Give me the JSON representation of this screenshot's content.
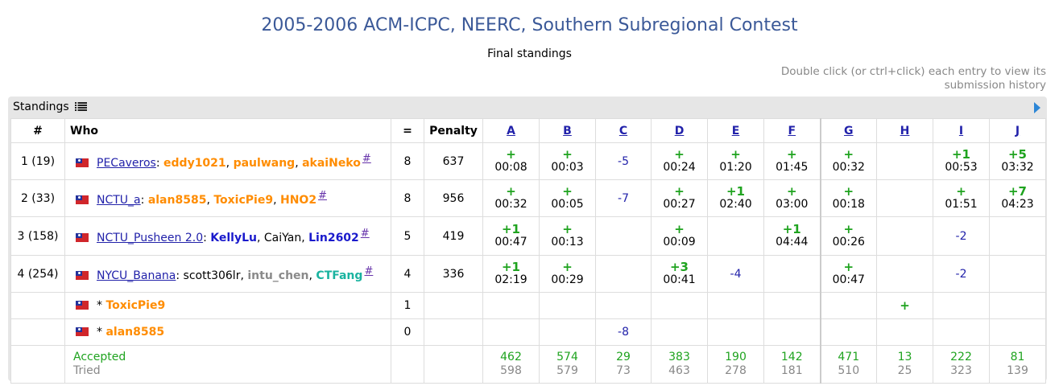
{
  "header": {
    "title": "2005-2006 ACM-ICPC, NEERC, Southern Subregional Contest",
    "subtitle": "Final standings",
    "hint": "Double click (or ctrl+click) each entry to view its submission history"
  },
  "panel": {
    "label": "Standings"
  },
  "columns": {
    "rank": "#",
    "who": "Who",
    "solved": "=",
    "penalty": "Penalty"
  },
  "problems": [
    "A",
    "B",
    "C",
    "D",
    "E",
    "F",
    "G",
    "H",
    "I",
    "J"
  ],
  "rows": [
    {
      "rank": "1 (19)",
      "team": "PECaveros",
      "hash": "#",
      "members": [
        {
          "name": "eddy1021",
          "style": "orange"
        },
        {
          "name": "paulwang",
          "style": "orange"
        },
        {
          "name": "akaiNeko",
          "style": "orange"
        }
      ],
      "solved": "8",
      "penalty": "637",
      "cells": [
        {
          "res": "+",
          "time": "00:08"
        },
        {
          "res": "+",
          "time": "00:03"
        },
        {
          "neg": "-5"
        },
        {
          "res": "+",
          "time": "00:24"
        },
        {
          "res": "+",
          "time": "01:20"
        },
        {
          "res": "+",
          "time": "01:45"
        },
        {
          "res": "+",
          "time": "00:32"
        },
        {},
        {
          "res": "+1",
          "time": "00:53"
        },
        {
          "res": "+5",
          "time": "03:32"
        }
      ]
    },
    {
      "rank": "2 (33)",
      "team": "NCTU_a",
      "hash": "#",
      "members": [
        {
          "name": "alan8585",
          "style": "orange"
        },
        {
          "name": "ToxicPie9",
          "style": "orange"
        },
        {
          "name": "HNO2",
          "style": "orange"
        }
      ],
      "solved": "8",
      "penalty": "956",
      "cells": [
        {
          "res": "+",
          "time": "00:32"
        },
        {
          "res": "+",
          "time": "00:05"
        },
        {
          "neg": "-7"
        },
        {
          "res": "+",
          "time": "00:27"
        },
        {
          "res": "+1",
          "time": "02:40"
        },
        {
          "res": "+",
          "time": "03:00"
        },
        {
          "res": "+",
          "time": "00:18"
        },
        {},
        {
          "res": "+",
          "time": "01:51"
        },
        {
          "res": "+7",
          "time": "04:23"
        }
      ]
    },
    {
      "rank": "3 (158)",
      "team": "NCTU_Pusheen 2.0",
      "hash": "#",
      "members": [
        {
          "name": "KellyLu",
          "style": "blue"
        },
        {
          "name": "CaiYan",
          "style": "plain"
        },
        {
          "name": "Lin2602",
          "style": "blue"
        }
      ],
      "solved": "5",
      "penalty": "419",
      "cells": [
        {
          "res": "+1",
          "time": "00:47"
        },
        {
          "res": "+",
          "time": "00:13"
        },
        {},
        {
          "res": "+",
          "time": "00:09"
        },
        {},
        {
          "res": "+1",
          "time": "04:44"
        },
        {
          "res": "+",
          "time": "00:26"
        },
        {},
        {
          "neg": "-2"
        },
        {}
      ]
    },
    {
      "rank": "4 (254)",
      "team": "NYCU_Banana",
      "hash": "#",
      "members": [
        {
          "name": "scott306lr",
          "style": "plain"
        },
        {
          "name": "intu_chen",
          "style": "gray"
        },
        {
          "name": "CTFang",
          "style": "teal"
        }
      ],
      "solved": "4",
      "penalty": "336",
      "cells": [
        {
          "res": "+1",
          "time": "02:19"
        },
        {
          "res": "+",
          "time": "00:29"
        },
        {},
        {
          "res": "+3",
          "time": "00:41"
        },
        {
          "neg": "-4"
        },
        {},
        {
          "res": "+",
          "time": "00:47"
        },
        {},
        {
          "neg": "-2"
        },
        {}
      ]
    }
  ],
  "virtual_rows": [
    {
      "prefix": "*",
      "name": "ToxicPie9",
      "solved": "1",
      "cells": [
        {},
        {},
        {},
        {},
        {},
        {},
        {},
        {
          "res": "+"
        },
        {},
        {}
      ]
    },
    {
      "prefix": "*",
      "name": "alan8585",
      "solved": "0",
      "cells": [
        {},
        {},
        {
          "neg": "-8"
        },
        {},
        {},
        {},
        {},
        {},
        {},
        {}
      ]
    }
  ],
  "footer": {
    "accepted_label": "Accepted",
    "tried_label": "Tried",
    "accepted": [
      "462",
      "574",
      "29",
      "383",
      "190",
      "142",
      "471",
      "13",
      "222",
      "81"
    ],
    "tried": [
      "598",
      "579",
      "73",
      "463",
      "278",
      "181",
      "510",
      "25",
      "323",
      "139"
    ]
  },
  "colors": {
    "accent": "#3b5998",
    "accepted": "#1fa31f",
    "link": "#2222aa",
    "orange": "#ff8c00",
    "blue": "#1a1acc",
    "teal": "#1ab3a0"
  },
  "icons": {
    "list": "list-icon",
    "expand": "play-icon",
    "flag": "flag-icon"
  }
}
